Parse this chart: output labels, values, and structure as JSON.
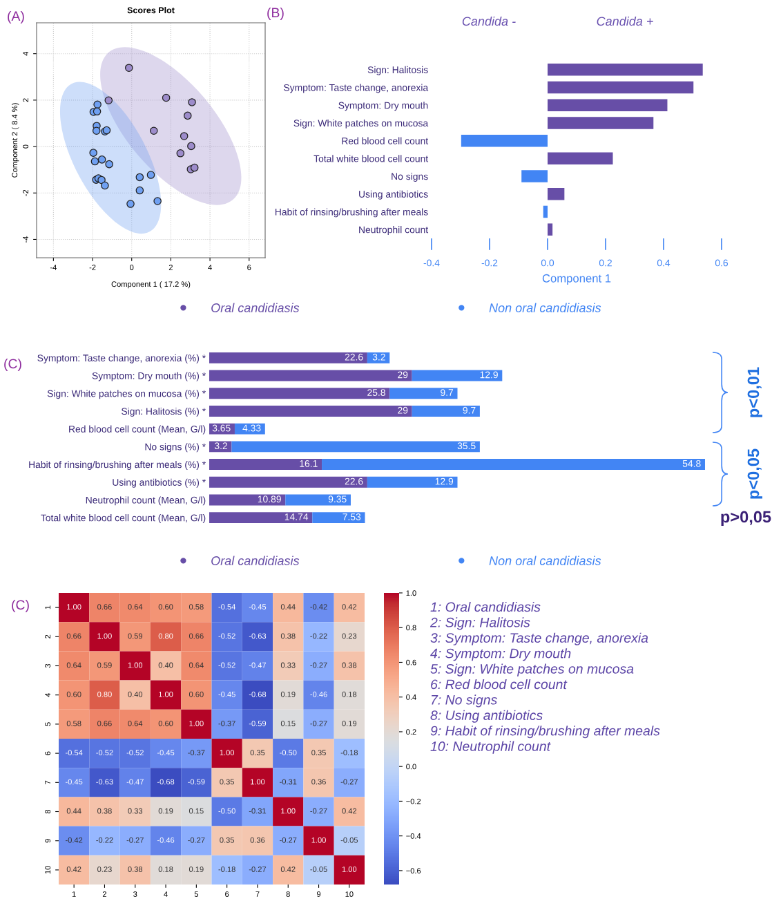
{
  "chart_data": [
    {
      "type": "scatter",
      "title": "Scores Plot",
      "xlabel": "Component 1 ( 17.2 %)",
      "ylabel": "Component 2 ( 8.4 %)",
      "xlim": [
        -4.86,
        6.82
      ],
      "ylim": [
        -4.79,
        5.33
      ],
      "xticks": [
        -4,
        -2,
        0,
        2,
        4,
        6
      ],
      "yticks": [
        -4,
        -2,
        0,
        2,
        4
      ],
      "grid": true,
      "marker": "circle",
      "annotations": [
        "(A)"
      ],
      "series": [
        {
          "color": "#9d8ccb",
          "x": [
            -0.14,
            -1.18,
            1.76,
            3.08,
            2.86,
            1.13,
            2.68,
            3.04,
            2.49,
            3.02,
            3.21
          ],
          "values": [
            3.39,
            1.99,
            2.1,
            1.91,
            1.33,
            0.68,
            0.45,
            0.02,
            -0.29,
            -0.98,
            -0.91
          ]
        },
        {
          "color": "#6fa0f2",
          "x": [
            -1.75,
            -1.95,
            -1.77,
            -1.79,
            -1.8,
            -1.37,
            -1.28,
            -1.96,
            -1.88,
            -1.52,
            -1.15,
            -1.82,
            -1.7,
            -1.54,
            -1.37,
            0.41,
            0.98,
            0.41,
            -0.06,
            1.32
          ],
          "values": [
            1.81,
            1.49,
            1.51,
            0.89,
            0.68,
            0.65,
            0.7,
            -0.27,
            -0.64,
            -0.56,
            -0.76,
            -1.43,
            -1.37,
            -1.44,
            -1.68,
            -1.32,
            -1.22,
            -1.89,
            -2.47,
            -2.35
          ]
        }
      ]
    },
    {
      "type": "bar",
      "orientation": "horizontal",
      "xlabel": "Component 1",
      "xlim": [
        -0.4,
        0.6
      ],
      "xticks": [
        -0.4,
        -0.2,
        {
          "value": 0,
          "label": "0.0"
        },
        0.2,
        0.4,
        0.6
      ],
      "legend": "bottom",
      "annotations": [
        "(B)",
        "Candida -",
        "Candida +"
      ],
      "categories": [
        "Sign: Halitosis",
        "Symptom: Taste change, anorexia",
        "Symptom: Dry mouth",
        "Sign: White patches on mucosa",
        "Red blood cell count",
        "Total white blood cell count",
        "No signs",
        "Using antibiotics",
        "Habit of rinsing/brushing after meals",
        "Neutrophil count"
      ],
      "series": [
        {
          "name": "Oral candidiasis",
          "color": "#674ea7",
          "values": [
            0.535,
            0.503,
            0.413,
            0.365,
            null,
            0.225,
            null,
            0.058,
            null,
            0.017
          ]
        },
        {
          "name": "Non oral candidiasis",
          "color": "#4285f4",
          "values": [
            null,
            null,
            null,
            null,
            -0.298,
            null,
            -0.09,
            null,
            -0.015,
            null
          ]
        }
      ]
    },
    {
      "type": "bar",
      "orientation": "horizontal",
      "stacked": true,
      "data_labels": true,
      "xlim": [
        0,
        71
      ],
      "legend": "bottom",
      "annotations": [
        "(C)",
        "p<0,01",
        "p<0,05",
        "p>0,05"
      ],
      "categories": [
        "Symptom: Taste change, anorexia (%) *",
        "Symptom: Dry mouth (%) *",
        "Sign: White patches on mucosa (%) *",
        "Sign: Halitosis (%) *",
        "Red blood cell count (Mean, G/l)",
        "No signs (%) *",
        "Habit of rinsing/brushing after meals (%) *",
        "Using antibiotics (%) *",
        "Neutrophil count (Mean, G/l)",
        "Total white blood cell count (Mean, G/l)"
      ],
      "series": [
        {
          "name": "Oral candidiasis",
          "color": "#674ea7",
          "values": [
            22.6,
            29,
            25.8,
            29,
            3.65,
            3.2,
            16.1,
            22.6,
            10.89,
            14.74
          ]
        },
        {
          "name": "Non oral candidiasis",
          "color": "#4285f4",
          "values": [
            3.2,
            12.9,
            9.7,
            9.7,
            4.33,
            35.5,
            54.8,
            12.9,
            9.35,
            7.53
          ]
        }
      ]
    },
    {
      "type": "heatmap",
      "categories": [
        "1",
        "2",
        "3",
        "4",
        "5",
        "6",
        "7",
        "8",
        "9",
        "10"
      ],
      "y_categories": [
        "1",
        "2",
        "3",
        "4",
        "5",
        "6",
        "7",
        "8",
        "9",
        "10"
      ],
      "clim": [
        -0.68,
        1.0
      ],
      "cticks": [
        {
          "value": -0.6,
          "label": "−0.6"
        },
        {
          "value": -0.4,
          "label": "−0.4"
        },
        {
          "value": -0.2,
          "label": "−0.2"
        },
        {
          "value": 0.0,
          "label": "0.0"
        },
        {
          "value": 0.2,
          "label": "0.2"
        },
        {
          "value": 0.4,
          "label": "0.4"
        },
        {
          "value": 0.6,
          "label": "0.6"
        },
        {
          "value": 0.8,
          "label": "0.8"
        },
        {
          "value": 1.0,
          "label": "1.0"
        }
      ],
      "annotations": [
        "(C)",
        "1: Oral candidiasis",
        "2: Sign: Halitosis",
        "3: Symptom: Taste change, anorexia",
        "4: Symptom: Dry mouth",
        "5: Sign: White patches on mucosa",
        "6: Red blood cell count",
        "7: No signs",
        "8: Using antibiotics",
        "9: Habit of rinsing/brushing after meals",
        "10: Neutrophil count"
      ],
      "cells": [
        [
          1.0,
          0.66,
          0.64,
          0.6,
          0.58,
          -0.54,
          -0.45,
          0.44,
          -0.42,
          0.42
        ],
        [
          0.66,
          1.0,
          0.59,
          0.8,
          0.66,
          -0.52,
          -0.63,
          0.38,
          -0.22,
          0.23
        ],
        [
          0.64,
          0.59,
          1.0,
          0.4,
          0.64,
          -0.52,
          -0.47,
          0.33,
          -0.27,
          0.38
        ],
        [
          0.6,
          0.8,
          0.4,
          1.0,
          0.6,
          -0.45,
          -0.68,
          0.19,
          -0.46,
          0.18
        ],
        [
          0.58,
          0.66,
          0.64,
          0.6,
          1.0,
          -0.37,
          -0.59,
          0.15,
          -0.27,
          0.19
        ],
        [
          -0.54,
          -0.52,
          -0.52,
          -0.45,
          -0.37,
          1.0,
          0.35,
          -0.5,
          0.35,
          -0.18
        ],
        [
          -0.45,
          -0.63,
          -0.47,
          -0.68,
          -0.59,
          0.35,
          1.0,
          -0.31,
          0.36,
          -0.27
        ],
        [
          0.44,
          0.38,
          0.33,
          0.19,
          0.15,
          -0.5,
          -0.31,
          1.0,
          -0.27,
          0.42
        ],
        [
          -0.42,
          -0.22,
          -0.27,
          -0.46,
          -0.27,
          0.35,
          0.36,
          -0.27,
          1.0,
          -0.05
        ],
        [
          0.42,
          0.23,
          0.38,
          0.18,
          0.19,
          -0.18,
          -0.27,
          0.42,
          -0.05,
          1.0
        ]
      ],
      "cell_labels": [
        [
          "1.00",
          "0.66",
          "0.64",
          "0.60",
          "0.58",
          "-0.54",
          "-0.45",
          "0.44",
          "-0.42",
          "0.42"
        ],
        [
          "0.66",
          "1.00",
          "0.59",
          "0.80",
          "0.66",
          "-0.52",
          "-0.63",
          "0.38",
          "-0.22",
          "0.23"
        ],
        [
          "0.64",
          "0.59",
          "1.00",
          "0.40",
          "0.64",
          "-0.52",
          "-0.47",
          "0.33",
          "-0.27",
          "0.38"
        ],
        [
          "0.60",
          "0.80",
          "0.40",
          "1.00",
          "0.60",
          "-0.45",
          "-0.68",
          "0.19",
          "-0.46",
          "0.18"
        ],
        [
          "0.58",
          "0.66",
          "0.64",
          "0.60",
          "1.00",
          "-0.37",
          "-0.59",
          "0.15",
          "-0.27",
          "0.19"
        ],
        [
          "-0.54",
          "-0.52",
          "-0.52",
          "-0.45",
          "-0.37",
          "1.00",
          "0.35",
          "-0.50",
          "0.35",
          "-0.18"
        ],
        [
          "-0.45",
          "-0.63",
          "-0.47",
          "-0.68",
          "-0.59",
          "0.35",
          "1.00",
          "-0.31",
          "0.36",
          "-0.27"
        ],
        [
          "0.44",
          "0.38",
          "0.33",
          "0.19",
          "0.15",
          "-0.50",
          "-0.31",
          "1.00",
          "-0.27",
          "0.42"
        ],
        [
          "-0.42",
          "-0.22",
          "-0.27",
          "-0.46",
          "-0.27",
          "0.35",
          "0.36",
          "-0.27",
          "1.00",
          "-0.05"
        ],
        [
          "0.42",
          "0.23",
          "0.38",
          "0.18",
          "0.19",
          "-0.18",
          "-0.27",
          "0.42",
          "-0.05",
          "1.00"
        ]
      ]
    }
  ]
}
